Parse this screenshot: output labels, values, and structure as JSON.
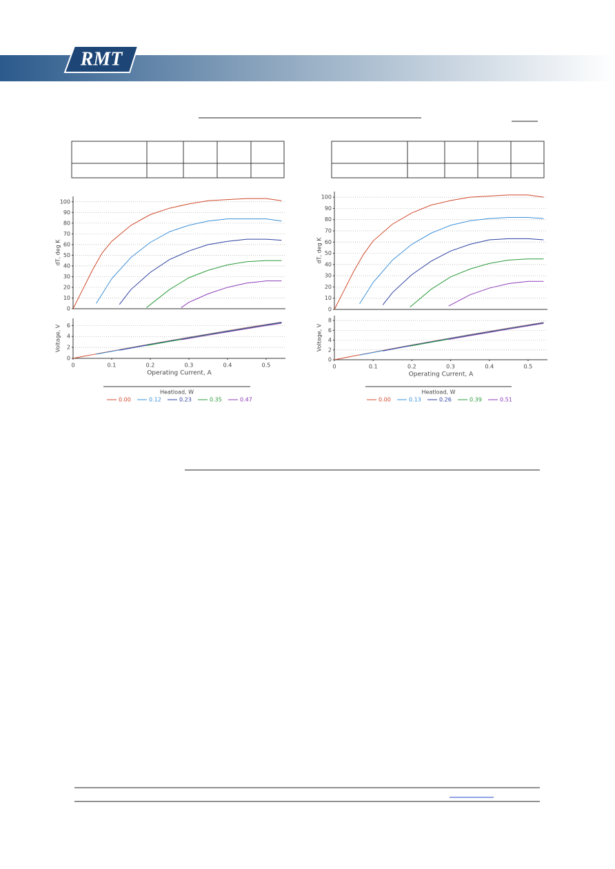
{
  "header": {
    "logo": "RMT"
  },
  "chart_data": [
    {
      "type": "line",
      "ylabel": "dT, deg K",
      "xlim": [
        0,
        0.55
      ],
      "ylim": [
        0,
        105
      ],
      "yticks": [
        0,
        10,
        20,
        30,
        40,
        50,
        60,
        70,
        80,
        90,
        100
      ],
      "grid": true,
      "legend_title": "Heatload, W",
      "series": [
        {
          "name": "0.00",
          "color": "#d0482a",
          "x": [
            0,
            0.025,
            0.05,
            0.075,
            0.1,
            0.15,
            0.2,
            0.25,
            0.3,
            0.35,
            0.4,
            0.45,
            0.5,
            0.54
          ],
          "values": [
            0,
            18,
            36,
            52,
            63,
            78,
            88,
            94,
            98,
            101,
            102,
            103,
            103,
            101
          ]
        },
        {
          "name": "0.12",
          "color": "#3a8fd8",
          "x": [
            0.06,
            0.1,
            0.15,
            0.2,
            0.25,
            0.3,
            0.35,
            0.4,
            0.45,
            0.5,
            0.54
          ],
          "values": [
            5,
            28,
            48,
            62,
            72,
            78,
            82,
            84,
            84,
            84,
            82
          ]
        },
        {
          "name": "0.23",
          "color": "#2a3fa0",
          "x": [
            0.12,
            0.15,
            0.2,
            0.25,
            0.3,
            0.35,
            0.4,
            0.45,
            0.5,
            0.54
          ],
          "values": [
            4,
            18,
            34,
            46,
            54,
            60,
            63,
            65,
            65,
            64
          ]
        },
        {
          "name": "0.35",
          "color": "#2a9a3a",
          "x": [
            0.19,
            0.25,
            0.3,
            0.35,
            0.4,
            0.45,
            0.5,
            0.54
          ],
          "values": [
            1,
            18,
            29,
            36,
            41,
            44,
            45,
            45
          ]
        },
        {
          "name": "0.47",
          "color": "#8a3ab8",
          "x": [
            0.28,
            0.3,
            0.35,
            0.4,
            0.45,
            0.5,
            0.54
          ],
          "values": [
            1,
            6,
            14,
            20,
            24,
            26,
            26
          ]
        }
      ]
    },
    {
      "type": "line",
      "xlabel": "Operating Current, A",
      "ylabel": "Voltage, V",
      "xlim": [
        0,
        0.55
      ],
      "ylim": [
        0,
        7.3
      ],
      "xticks": [
        0,
        0.1,
        0.2,
        0.3,
        0.4,
        0.5
      ],
      "yticks": [
        0,
        2,
        4,
        6
      ],
      "grid": true,
      "series": [
        {
          "color": "#d0482a",
          "x": [
            0,
            0.025,
            0.05,
            0.075,
            0.1,
            0.15,
            0.2,
            0.25,
            0.3,
            0.35,
            0.4,
            0.45,
            0.5,
            0.54
          ],
          "values": [
            0,
            0.34,
            0.67,
            1.0,
            1.33,
            1.97,
            2.61,
            3.23,
            3.84,
            4.44,
            5.03,
            5.61,
            6.18,
            6.62
          ]
        },
        {
          "color": "#3a8fd8",
          "x": [
            0.06,
            0.1,
            0.15,
            0.2,
            0.25,
            0.3,
            0.35,
            0.4,
            0.45,
            0.5,
            0.54
          ],
          "values": [
            0.75,
            1.28,
            1.92,
            2.56,
            3.18,
            3.79,
            4.39,
            4.98,
            5.56,
            6.13,
            6.57
          ]
        },
        {
          "color": "#2a3fa0",
          "x": [
            0.12,
            0.15,
            0.2,
            0.25,
            0.3,
            0.35,
            0.4,
            0.45,
            0.5,
            0.54
          ],
          "values": [
            1.49,
            1.87,
            2.51,
            3.13,
            3.74,
            4.34,
            4.93,
            5.51,
            6.08,
            6.52
          ]
        },
        {
          "color": "#2a9a3a",
          "x": [
            0.19,
            0.25,
            0.3,
            0.35,
            0.4,
            0.45,
            0.5,
            0.54
          ],
          "values": [
            2.33,
            3.08,
            3.69,
            4.29,
            4.88,
            5.46,
            6.03,
            6.47
          ]
        },
        {
          "color": "#8a3ab8",
          "x": [
            0.28,
            0.3,
            0.35,
            0.4,
            0.45,
            0.5,
            0.54
          ],
          "values": [
            3.4,
            3.64,
            4.24,
            4.83,
            5.41,
            5.98,
            6.42
          ]
        }
      ]
    },
    {
      "type": "line",
      "ylabel": "dT, deg K",
      "xlim": [
        0,
        0.55
      ],
      "ylim": [
        0,
        105
      ],
      "yticks": [
        0,
        10,
        20,
        30,
        40,
        50,
        60,
        70,
        80,
        90,
        100
      ],
      "grid": true,
      "legend_title": "Heatload, W",
      "series": [
        {
          "name": "0.00",
          "color": "#d0482a",
          "x": [
            0,
            0.025,
            0.05,
            0.075,
            0.1,
            0.15,
            0.2,
            0.25,
            0.3,
            0.35,
            0.4,
            0.45,
            0.5,
            0.54
          ],
          "values": [
            0,
            17,
            34,
            49,
            61,
            76,
            86,
            93,
            97,
            100,
            101,
            102,
            102,
            100
          ]
        },
        {
          "name": "0.13",
          "color": "#3a8fd8",
          "x": [
            0.065,
            0.1,
            0.15,
            0.2,
            0.25,
            0.3,
            0.35,
            0.4,
            0.45,
            0.5,
            0.54
          ],
          "values": [
            5,
            24,
            44,
            58,
            68,
            75,
            79,
            81,
            82,
            82,
            81
          ]
        },
        {
          "name": "0.26",
          "color": "#2a3fa0",
          "x": [
            0.125,
            0.15,
            0.2,
            0.25,
            0.3,
            0.35,
            0.4,
            0.45,
            0.5,
            0.54
          ],
          "values": [
            4,
            15,
            31,
            43,
            52,
            58,
            62,
            63,
            63,
            62
          ]
        },
        {
          "name": "0.39",
          "color": "#2a9a3a",
          "x": [
            0.195,
            0.25,
            0.3,
            0.35,
            0.4,
            0.45,
            0.5,
            0.54
          ],
          "values": [
            2,
            18,
            29,
            36,
            41,
            44,
            45,
            45
          ]
        },
        {
          "name": "0.51",
          "color": "#8a3ab8",
          "x": [
            0.295,
            0.35,
            0.4,
            0.45,
            0.5,
            0.54
          ],
          "values": [
            3,
            13,
            19,
            23,
            25,
            25
          ]
        }
      ]
    },
    {
      "type": "line",
      "xlabel": "Operating Current, A",
      "ylabel": "Voltage, V",
      "xlim": [
        0,
        0.55
      ],
      "ylim": [
        0,
        9
      ],
      "xticks": [
        0,
        0.1,
        0.2,
        0.3,
        0.4,
        0.5
      ],
      "yticks": [
        0,
        2,
        4,
        6,
        8
      ],
      "grid": true,
      "series": [
        {
          "color": "#d0482a",
          "x": [
            0,
            0.025,
            0.05,
            0.075,
            0.1,
            0.15,
            0.2,
            0.25,
            0.3,
            0.35,
            0.4,
            0.45,
            0.5,
            0.54
          ],
          "values": [
            0,
            0.39,
            0.77,
            1.15,
            1.52,
            2.27,
            3.0,
            3.71,
            4.42,
            5.11,
            5.78,
            6.45,
            7.1,
            7.61
          ]
        },
        {
          "color": "#3a8fd8",
          "x": [
            0.065,
            0.1,
            0.15,
            0.2,
            0.25,
            0.3,
            0.35,
            0.4,
            0.45,
            0.5,
            0.54
          ],
          "values": [
            0.95,
            1.47,
            2.22,
            2.95,
            3.66,
            4.37,
            5.06,
            5.73,
            6.4,
            7.05,
            7.56
          ]
        },
        {
          "color": "#2a3fa0",
          "x": [
            0.125,
            0.15,
            0.2,
            0.25,
            0.3,
            0.35,
            0.4,
            0.45,
            0.5,
            0.54
          ],
          "values": [
            1.8,
            2.17,
            2.9,
            3.61,
            4.32,
            5.01,
            5.68,
            6.35,
            7.0,
            7.51
          ]
        },
        {
          "color": "#2a9a3a",
          "x": [
            0.195,
            0.25,
            0.3,
            0.35,
            0.4,
            0.45,
            0.5,
            0.54
          ],
          "values": [
            2.77,
            3.56,
            4.27,
            4.96,
            5.63,
            6.3,
            6.95,
            7.46
          ]
        },
        {
          "color": "#8a3ab8",
          "x": [
            0.295,
            0.35,
            0.4,
            0.45,
            0.5,
            0.54
          ],
          "values": [
            4.15,
            4.91,
            5.58,
            6.25,
            6.9,
            7.41
          ]
        }
      ]
    }
  ]
}
